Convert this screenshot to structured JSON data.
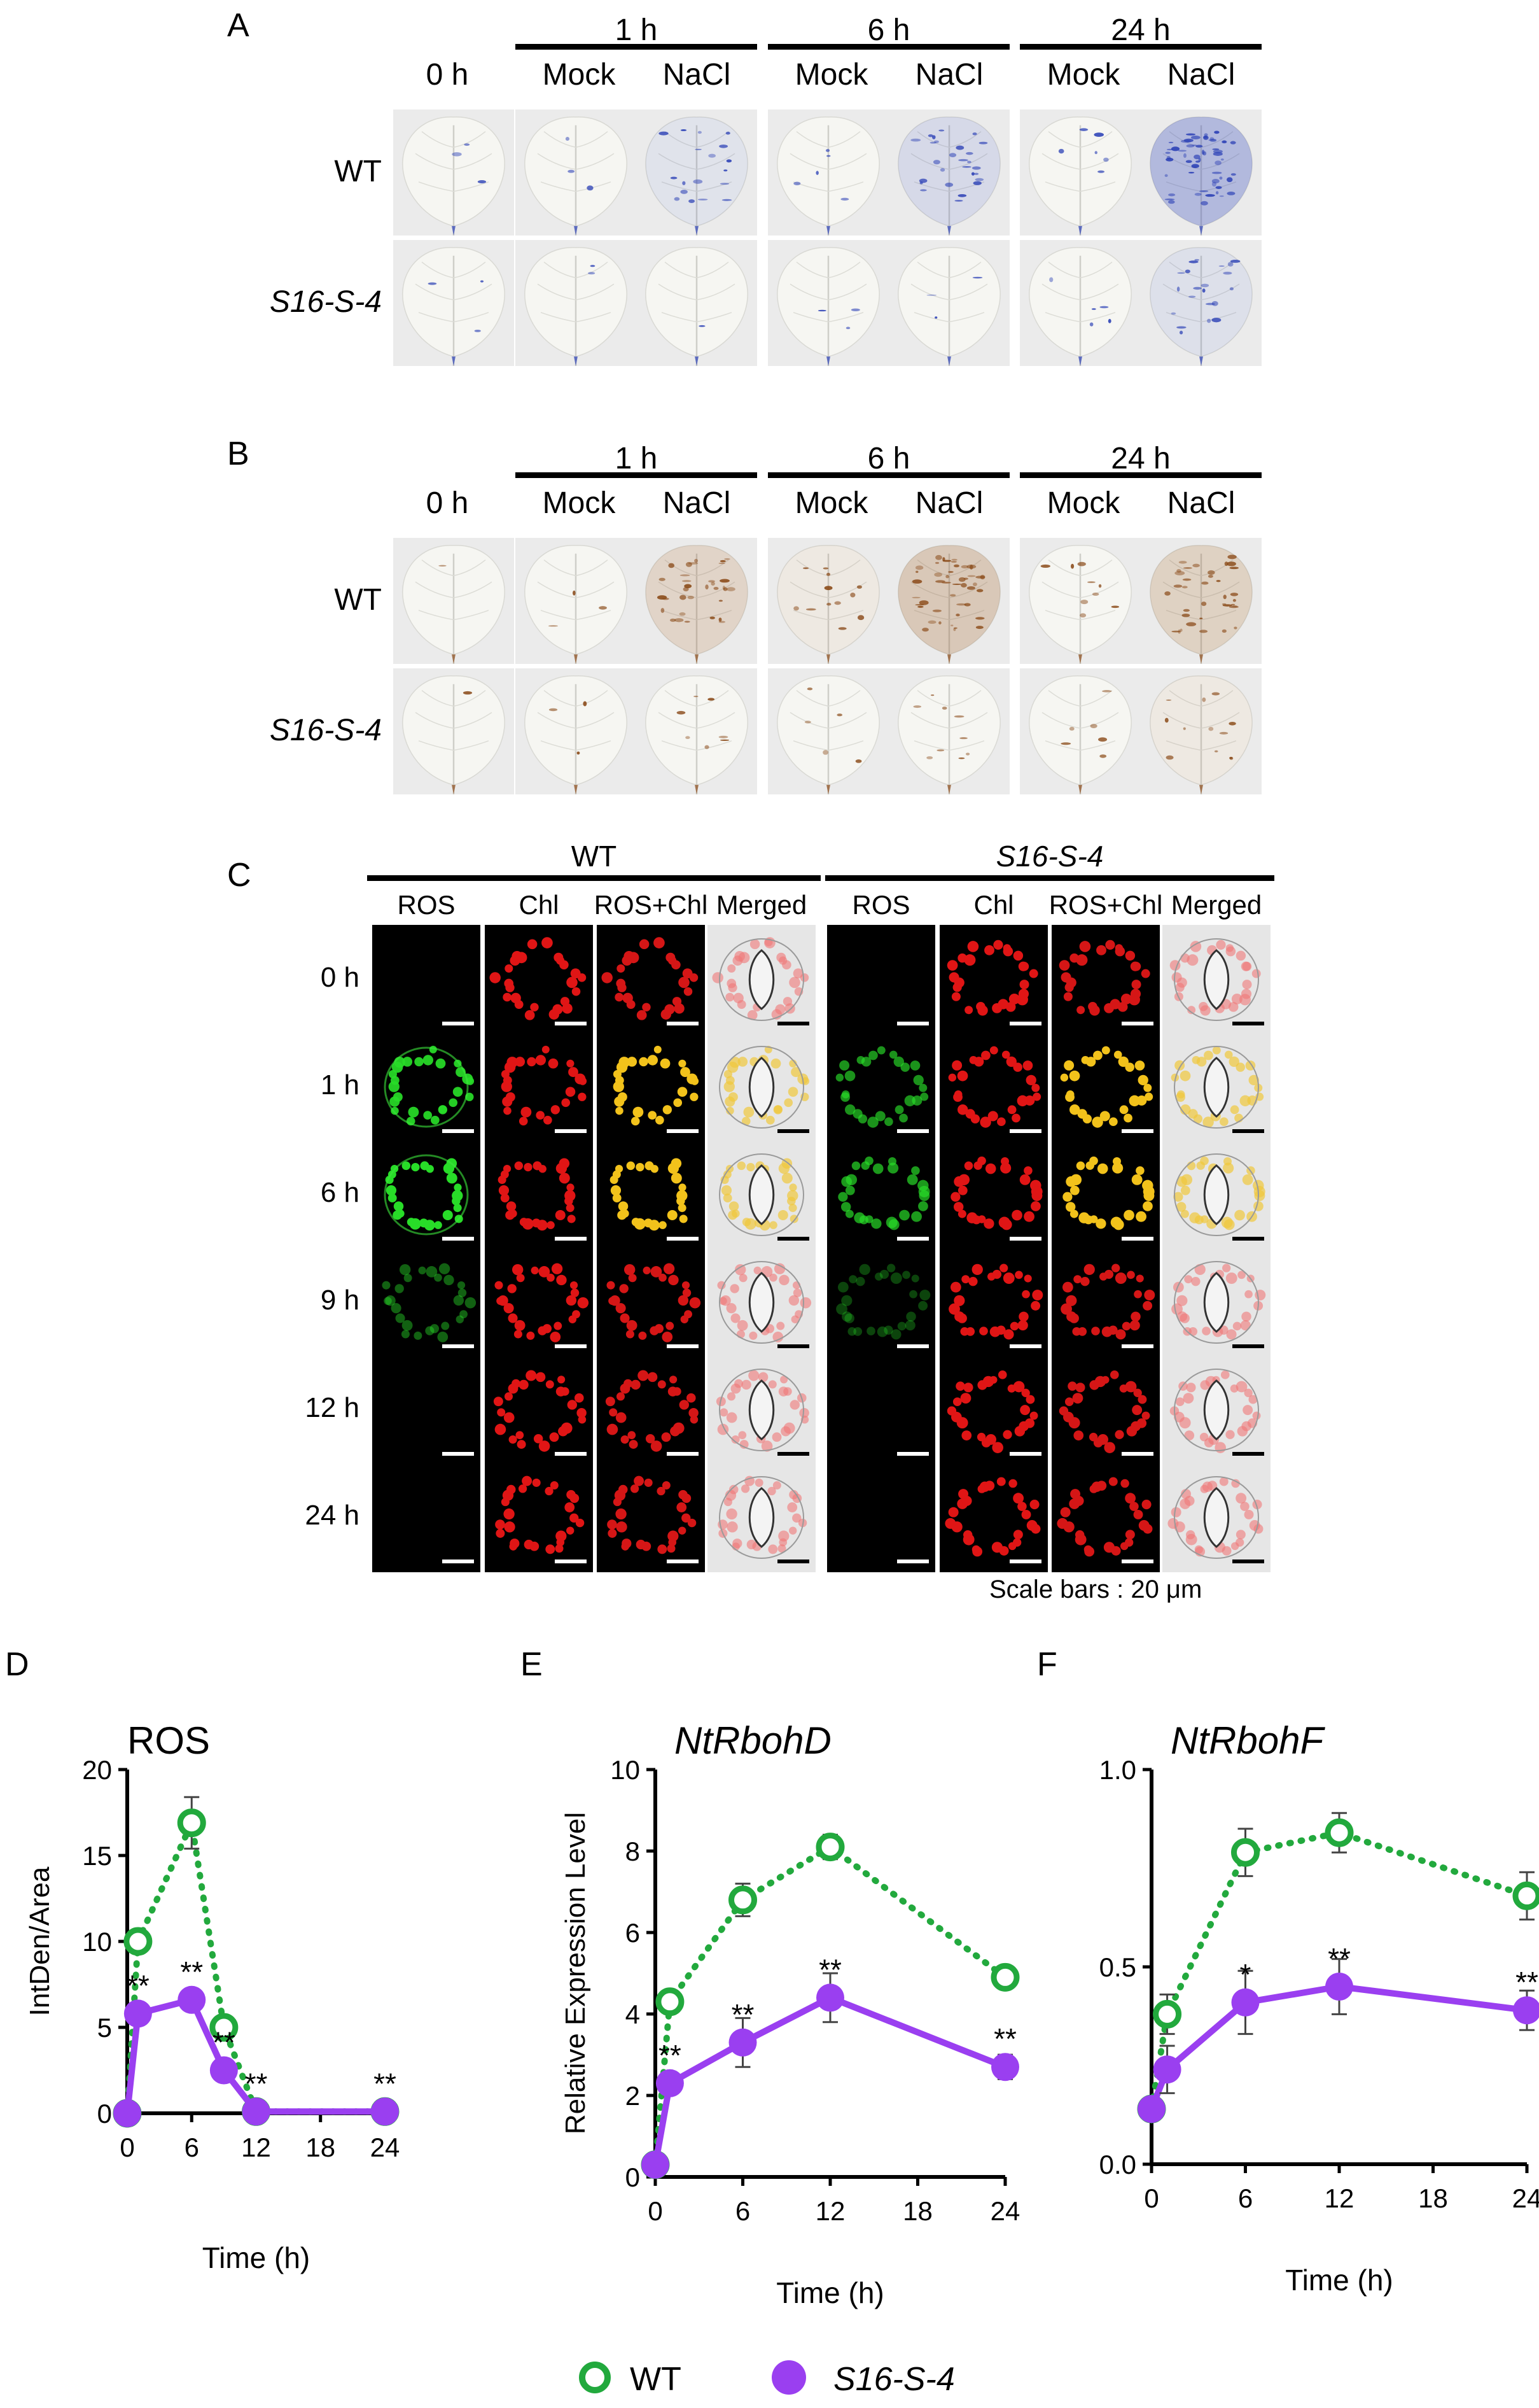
{
  "panelA": {
    "label": "A",
    "groups": [
      {
        "time": "1 h",
        "labels": [
          "Mock",
          "NaCl"
        ]
      },
      {
        "time": "6 h",
        "labels": [
          "Mock",
          "NaCl"
        ]
      },
      {
        "time": "24 h",
        "labels": [
          "Mock",
          "NaCl"
        ]
      }
    ],
    "first": "0 h",
    "rows": [
      "WT",
      "S16-S-4"
    ],
    "stain": "#2a3fb5",
    "intensity": [
      [
        0.05,
        0.05,
        0.3,
        0.08,
        0.45,
        0.1,
        0.95
      ],
      [
        0.05,
        0.03,
        0.02,
        0.05,
        0.05,
        0.08,
        0.35
      ]
    ]
  },
  "panelB": {
    "label": "B",
    "groups": [
      {
        "time": "1 h",
        "labels": [
          "Mock",
          "NaCl"
        ]
      },
      {
        "time": "6 h",
        "labels": [
          "Mock",
          "NaCl"
        ]
      },
      {
        "time": "24 h",
        "labels": [
          "Mock",
          "NaCl"
        ]
      }
    ],
    "first": "0 h",
    "rows": [
      "WT",
      "S16-S-4"
    ],
    "stain": "#8a4a18",
    "intensity": [
      [
        0.02,
        0.05,
        0.55,
        0.2,
        0.75,
        0.15,
        0.6
      ],
      [
        0.02,
        0.05,
        0.12,
        0.08,
        0.15,
        0.1,
        0.2
      ]
    ]
  },
  "panelC": {
    "label": "C",
    "genotypes": [
      "WT",
      "S16-S-4"
    ],
    "columns": [
      "ROS",
      "Chl",
      "ROS+Chl",
      "Merged"
    ],
    "times": [
      "0 h",
      "1 h",
      "6 h",
      "9 h",
      "12 h",
      "24 h"
    ],
    "green": {
      "WT": [
        0,
        0.9,
        1.0,
        0.25,
        0,
        0
      ],
      "S16-S-4": [
        0,
        0.55,
        0.6,
        0.08,
        0,
        0
      ]
    },
    "scale": "Scale bars : 20 μm"
  },
  "legend": {
    "wt": "WT",
    "mut": "S16-S-4",
    "wt_color": "#22a93d",
    "mut_color": "#9a3ff0"
  },
  "chart_data": [
    {
      "type": "line",
      "panel": "D",
      "title": "ROS",
      "xlabel": "Time (h)",
      "ylabel": "IntDen/Area",
      "xlim": [
        0,
        24
      ],
      "ylim": [
        0,
        20
      ],
      "xticks": [
        "0",
        "6",
        "12",
        "18",
        "24"
      ],
      "yticks": [
        "0",
        "5",
        "10",
        "15",
        "20"
      ],
      "series": [
        {
          "name": "WT",
          "x": [
            0,
            1,
            6,
            9,
            12,
            24
          ],
          "y": [
            0,
            10,
            16.9,
            5,
            0.1,
            0.1
          ],
          "err": [
            0,
            0.3,
            1.5,
            0.4,
            0,
            0
          ]
        },
        {
          "name": "S16-S-4",
          "x": [
            0,
            1,
            6,
            9,
            12,
            24
          ],
          "y": [
            0,
            5.8,
            6.6,
            2.5,
            0.1,
            0.1
          ],
          "err": [
            0,
            0.3,
            0.3,
            0.2,
            0,
            0
          ]
        }
      ],
      "annotations": [
        {
          "x": 1,
          "y": 5.8,
          "text": "**"
        },
        {
          "x": 6,
          "y": 6.6,
          "text": "**"
        },
        {
          "x": 9,
          "y": 2.5,
          "text": "**"
        },
        {
          "x": 12,
          "y": 0.1,
          "text": "**"
        },
        {
          "x": 24,
          "y": 0.1,
          "text": "**"
        }
      ]
    },
    {
      "type": "line",
      "panel": "E",
      "title": "NtRbohD",
      "xlabel": "Time (h)",
      "ylabel": "Relative Expression Level",
      "xlim": [
        0,
        24
      ],
      "ylim": [
        0,
        10
      ],
      "xticks": [
        "0",
        "6",
        "12",
        "18",
        "24"
      ],
      "yticks": [
        "0",
        "2",
        "4",
        "6",
        "8",
        "10"
      ],
      "series": [
        {
          "name": "WT",
          "x": [
            0,
            1,
            6,
            12,
            24
          ],
          "y": [
            0.3,
            4.3,
            6.8,
            8.1,
            4.9
          ],
          "err": [
            0,
            0.2,
            0.4,
            0.3,
            0.2
          ]
        },
        {
          "name": "S16-S-4",
          "x": [
            0,
            1,
            6,
            12,
            24
          ],
          "y": [
            0.3,
            2.3,
            3.3,
            4.4,
            2.7
          ],
          "err": [
            0,
            0.2,
            0.6,
            0.6,
            0.3
          ]
        }
      ],
      "annotations": [
        {
          "x": 1,
          "y": 2.3,
          "text": "**"
        },
        {
          "x": 6,
          "y": 3.3,
          "text": "**"
        },
        {
          "x": 12,
          "y": 4.4,
          "text": "**"
        },
        {
          "x": 24,
          "y": 2.7,
          "text": "**"
        }
      ]
    },
    {
      "type": "line",
      "panel": "F",
      "title": "NtRbohF",
      "xlabel": "Time (h)",
      "ylabel": "",
      "xlim": [
        0,
        24
      ],
      "ylim": [
        0,
        1.0
      ],
      "xticks": [
        "0",
        "6",
        "12",
        "18",
        "24"
      ],
      "yticks": [
        "0.0",
        "0.5",
        "1.0"
      ],
      "series": [
        {
          "name": "WT",
          "x": [
            0,
            1,
            6,
            12,
            24
          ],
          "y": [
            0.14,
            0.38,
            0.79,
            0.84,
            0.68
          ],
          "err": [
            0,
            0.05,
            0.06,
            0.05,
            0.06
          ]
        },
        {
          "name": "S16-S-4",
          "x": [
            0,
            1,
            6,
            12,
            24
          ],
          "y": [
            0.14,
            0.24,
            0.41,
            0.45,
            0.39
          ],
          "err": [
            0,
            0.06,
            0.08,
            0.07,
            0.05
          ]
        }
      ],
      "annotations": [
        {
          "x": 6,
          "y": 0.41,
          "text": "*"
        },
        {
          "x": 12,
          "y": 0.45,
          "text": "**"
        },
        {
          "x": 24,
          "y": 0.39,
          "text": "**"
        }
      ]
    }
  ]
}
